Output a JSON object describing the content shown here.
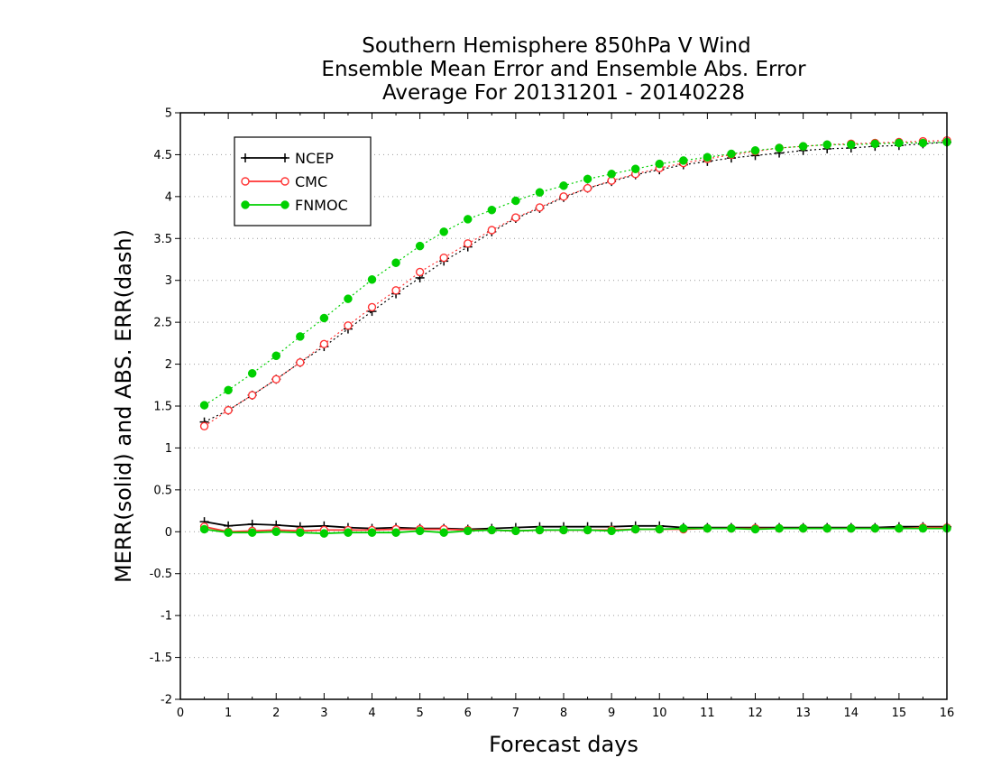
{
  "chart_data": {
    "type": "line",
    "title_lines": [
      "Southern Hemisphere 850hPa V Wind",
      "Ensemble Mean Error and Ensemble Abs. Error",
      "Average For 20131201 - 20140228"
    ],
    "xlabel": "Forecast days",
    "ylabel": "MERR(solid) and ABS. ERR(dash)",
    "xlim": [
      0,
      16
    ],
    "ylim": [
      -2,
      5
    ],
    "x_ticks": [
      0,
      1,
      2,
      3,
      4,
      5,
      6,
      7,
      8,
      9,
      10,
      11,
      12,
      13,
      14,
      15,
      16
    ],
    "y_ticks": [
      -2,
      -1.5,
      -1,
      -0.5,
      0,
      0.5,
      1,
      1.5,
      2,
      2.5,
      3,
      3.5,
      4,
      4.5,
      5
    ],
    "y_tick_labels": [
      "-2",
      "-1.5",
      "-1",
      "-0.5",
      "0",
      "0.5",
      "1",
      "1.5",
      "2",
      "2.5",
      "3",
      "3.5",
      "4",
      "4.5",
      "5"
    ],
    "grid": "horizontal dotted",
    "legend_position": "top-left",
    "x": [
      0.5,
      1,
      1.5,
      2,
      2.5,
      3,
      3.5,
      4,
      4.5,
      5,
      5.5,
      6,
      6.5,
      7,
      7.5,
      8,
      8.5,
      9,
      9.5,
      10,
      10.5,
      11,
      11.5,
      12,
      12.5,
      13,
      13.5,
      14,
      14.5,
      15,
      15.5,
      16
    ],
    "series": [
      {
        "name": "NCEP",
        "color": "#000000",
        "marker": "plus",
        "merr": [
          0.12,
          0.07,
          0.09,
          0.08,
          0.06,
          0.07,
          0.05,
          0.04,
          0.05,
          0.04,
          0.04,
          0.03,
          0.04,
          0.05,
          0.06,
          0.06,
          0.06,
          0.06,
          0.07,
          0.07,
          0.05,
          0.05,
          0.05,
          0.05,
          0.05,
          0.05,
          0.05,
          0.05,
          0.05,
          0.06,
          0.06,
          0.06
        ],
        "abs_err": [
          1.31,
          1.45,
          1.63,
          1.82,
          2.02,
          2.21,
          2.42,
          2.63,
          2.84,
          3.03,
          3.23,
          3.4,
          3.58,
          3.74,
          3.86,
          3.99,
          4.1,
          4.18,
          4.26,
          4.32,
          4.38,
          4.42,
          4.46,
          4.49,
          4.52,
          4.55,
          4.57,
          4.58,
          4.6,
          4.61,
          4.63,
          4.65
        ]
      },
      {
        "name": "CMC",
        "color": "#ff3333",
        "marker": "open-circle",
        "merr": [
          0.06,
          0.0,
          0.01,
          0.02,
          0.01,
          0.02,
          0.02,
          0.02,
          0.03,
          0.03,
          0.03,
          0.02,
          0.02,
          0.01,
          0.02,
          0.02,
          0.02,
          0.02,
          0.03,
          0.03,
          0.03,
          0.04,
          0.04,
          0.04,
          0.04,
          0.04,
          0.04,
          0.04,
          0.04,
          0.04,
          0.05,
          0.05
        ],
        "abs_err": [
          1.26,
          1.45,
          1.63,
          1.82,
          2.02,
          2.24,
          2.46,
          2.68,
          2.88,
          3.1,
          3.27,
          3.44,
          3.6,
          3.75,
          3.87,
          4.0,
          4.1,
          4.19,
          4.27,
          4.34,
          4.4,
          4.45,
          4.5,
          4.54,
          4.58,
          4.6,
          4.62,
          4.63,
          4.64,
          4.65,
          4.66,
          4.67
        ]
      },
      {
        "name": "FNMOC",
        "color": "#00d000",
        "marker": "filled-circle",
        "merr": [
          0.03,
          -0.01,
          -0.01,
          0.0,
          -0.01,
          -0.02,
          -0.01,
          -0.01,
          -0.01,
          0.01,
          -0.01,
          0.01,
          0.02,
          0.01,
          0.02,
          0.02,
          0.02,
          0.01,
          0.03,
          0.03,
          0.04,
          0.04,
          0.04,
          0.03,
          0.04,
          0.04,
          0.04,
          0.04,
          0.04,
          0.04,
          0.04,
          0.04
        ],
        "abs_err": [
          1.51,
          1.69,
          1.89,
          2.1,
          2.33,
          2.55,
          2.78,
          3.01,
          3.21,
          3.41,
          3.58,
          3.73,
          3.84,
          3.95,
          4.05,
          4.13,
          4.21,
          4.27,
          4.33,
          4.39,
          4.43,
          4.47,
          4.51,
          4.55,
          4.58,
          4.6,
          4.62,
          4.62,
          4.63,
          4.64,
          4.64,
          4.65
        ]
      }
    ]
  }
}
